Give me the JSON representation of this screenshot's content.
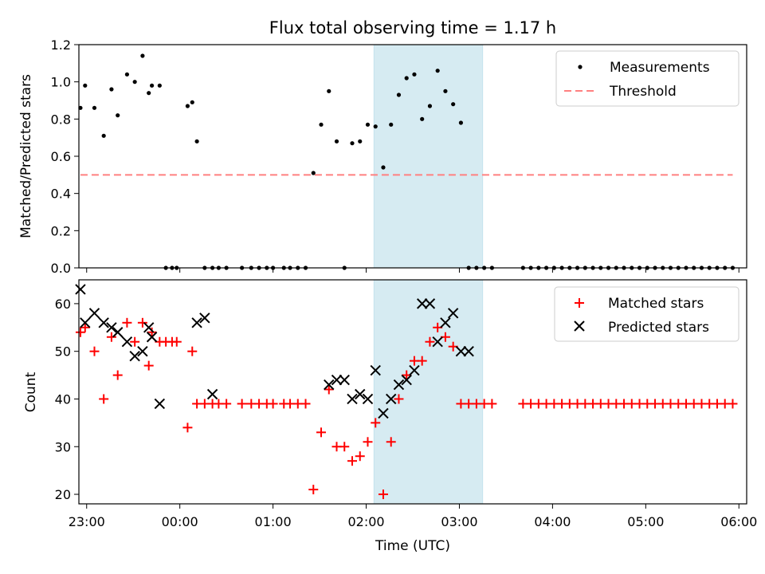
{
  "chart_data": [
    {
      "type": "scatter",
      "title": "Flux total observing time = 1.17 h",
      "xlabel": "",
      "ylabel": "Matched/Predicted stars",
      "ylim": [
        0,
        1.2
      ],
      "yticks": [
        "0.0",
        "0.2",
        "0.4",
        "0.6",
        "0.8",
        "1.0",
        "1.2"
      ],
      "shaded_region": {
        "start": "02:05",
        "end": "03:15",
        "color": "#add8e6"
      },
      "series": [
        {
          "name": "Measurements",
          "marker": "dot",
          "color": "#000000",
          "x": [
            "22:56",
            "22:59",
            "23:05",
            "23:11",
            "23:16",
            "23:20",
            "23:26",
            "23:31",
            "23:36",
            "23:40",
            "23:42",
            "23:47",
            "23:51",
            "23:55",
            "23:58",
            "00:05",
            "00:08",
            "00:11",
            "00:16",
            "00:21",
            "00:25",
            "00:30",
            "00:40",
            "00:46",
            "00:51",
            "00:56",
            "01:00",
            "01:07",
            "01:11",
            "01:16",
            "01:21",
            "01:26",
            "01:31",
            "01:36",
            "01:41",
            "01:46",
            "01:51",
            "01:56",
            "02:01",
            "02:06",
            "02:11",
            "02:16",
            "02:21",
            "02:26",
            "02:31",
            "02:36",
            "02:41",
            "02:46",
            "02:51",
            "02:56",
            "03:01",
            "03:06",
            "03:11",
            "03:16",
            "03:21",
            "03:41",
            "03:46",
            "03:51",
            "03:56",
            "04:01",
            "04:06",
            "04:11",
            "04:16",
            "04:21",
            "04:26",
            "04:31",
            "04:36",
            "04:41",
            "04:46",
            "04:51",
            "04:56",
            "05:01",
            "05:06",
            "05:11",
            "05:16",
            "05:21",
            "05:26",
            "05:31",
            "05:36",
            "05:41",
            "05:46",
            "05:51",
            "05:56"
          ],
          "y": [
            0.86,
            0.98,
            0.86,
            0.71,
            0.96,
            0.82,
            1.04,
            1.0,
            1.14,
            0.94,
            0.98,
            0.98,
            0.0,
            0.0,
            0.0,
            0.87,
            0.89,
            0.68,
            0.0,
            0.0,
            0.0,
            0.0,
            0.0,
            0.0,
            0.0,
            0.0,
            0.0,
            0.0,
            0.0,
            0.0,
            0.0,
            0.51,
            0.77,
            0.95,
            0.68,
            0.0,
            0.67,
            0.68,
            0.77,
            0.76,
            0.54,
            0.77,
            0.93,
            1.02,
            1.04,
            0.8,
            0.87,
            1.06,
            0.95,
            0.88,
            0.78,
            0.0,
            0.0,
            0.0,
            0.0,
            0.0,
            0.0,
            0.0,
            0.0,
            0.0,
            0.0,
            0.0,
            0.0,
            0.0,
            0.0,
            0.0,
            0.0,
            0.0,
            0.0,
            0.0,
            0.0,
            0.0,
            0.0,
            0.0,
            0.0,
            0.0,
            0.0,
            0.0,
            0.0,
            0.0,
            0.0,
            0.0,
            0.0
          ]
        },
        {
          "name": "Threshold",
          "marker": "dashed-line",
          "color": "#ff8080",
          "x": [
            "22:56",
            "05:56"
          ],
          "y": [
            0.5,
            0.5
          ]
        }
      ],
      "legend_position": "top-right"
    },
    {
      "type": "scatter",
      "title": "",
      "xlabel": "Time (UTC)",
      "ylabel": "Count",
      "ylim": [
        18,
        65
      ],
      "yticks": [
        "20",
        "30",
        "40",
        "50",
        "60"
      ],
      "xticks": [
        "23:00",
        "00:00",
        "01:00",
        "02:00",
        "03:00",
        "04:00",
        "05:00",
        "06:00"
      ],
      "shaded_region": {
        "start": "02:05",
        "end": "03:15",
        "color": "#add8e6"
      },
      "series": [
        {
          "name": "Matched stars",
          "marker": "plus",
          "color": "#ff0000",
          "x": [
            "22:56",
            "22:59",
            "23:05",
            "23:11",
            "23:16",
            "23:20",
            "23:26",
            "23:31",
            "23:36",
            "23:40",
            "23:42",
            "23:47",
            "23:51",
            "23:55",
            "23:58",
            "00:05",
            "00:08",
            "00:11",
            "00:16",
            "00:21",
            "00:25",
            "00:30",
            "00:40",
            "00:46",
            "00:51",
            "00:56",
            "01:00",
            "01:07",
            "01:11",
            "01:16",
            "01:21",
            "01:26",
            "01:31",
            "01:36",
            "01:41",
            "01:46",
            "01:51",
            "01:56",
            "02:01",
            "02:06",
            "02:11",
            "02:16",
            "02:21",
            "02:26",
            "02:31",
            "02:36",
            "02:41",
            "02:46",
            "02:51",
            "02:56",
            "03:01",
            "03:06",
            "03:11",
            "03:16",
            "03:21",
            "03:41",
            "03:46",
            "03:51",
            "03:56",
            "04:01",
            "04:06",
            "04:11",
            "04:16",
            "04:21",
            "04:26",
            "04:31",
            "04:36",
            "04:41",
            "04:46",
            "04:51",
            "04:56",
            "05:01",
            "05:06",
            "05:11",
            "05:16",
            "05:21",
            "05:26",
            "05:31",
            "05:36",
            "05:41",
            "05:46",
            "05:51",
            "05:56"
          ],
          "y": [
            54,
            55,
            50,
            40,
            53,
            45,
            56,
            52,
            56,
            47,
            54,
            52,
            52,
            52,
            52,
            34,
            50,
            39,
            39,
            39,
            39,
            39,
            39,
            39,
            39,
            39,
            39,
            39,
            39,
            39,
            39,
            21,
            33,
            42,
            30,
            30,
            27,
            28,
            31,
            35,
            20,
            31,
            40,
            45,
            48,
            48,
            52,
            55,
            53,
            51,
            39,
            39,
            39,
            39,
            39,
            39,
            39,
            39,
            39,
            39,
            39,
            39,
            39,
            39,
            39,
            39,
            39,
            39,
            39,
            39,
            39,
            39,
            39,
            39,
            39,
            39,
            39,
            39,
            39,
            39,
            39,
            39,
            39
          ]
        },
        {
          "name": "Predicted stars",
          "marker": "x",
          "color": "#000000",
          "x": [
            "22:56",
            "22:59",
            "23:05",
            "23:11",
            "23:16",
            "23:20",
            "23:26",
            "23:31",
            "23:36",
            "23:40",
            "23:42",
            "23:47",
            "00:11",
            "00:16",
            "00:21",
            "01:36",
            "01:41",
            "01:46",
            "01:51",
            "01:56",
            "02:01",
            "02:06",
            "02:11",
            "02:16",
            "02:21",
            "02:26",
            "02:31",
            "02:36",
            "02:41",
            "02:46",
            "02:51",
            "02:56",
            "03:01",
            "03:06"
          ],
          "y": [
            63,
            56,
            58,
            56,
            55,
            54,
            52,
            49,
            50,
            55,
            53,
            39,
            56,
            57,
            41,
            43,
            44,
            44,
            40,
            41,
            40,
            46,
            37,
            40,
            43,
            44,
            46,
            60,
            60,
            52,
            56,
            58,
            50,
            50
          ]
        }
      ],
      "legend_position": "top-right"
    }
  ]
}
